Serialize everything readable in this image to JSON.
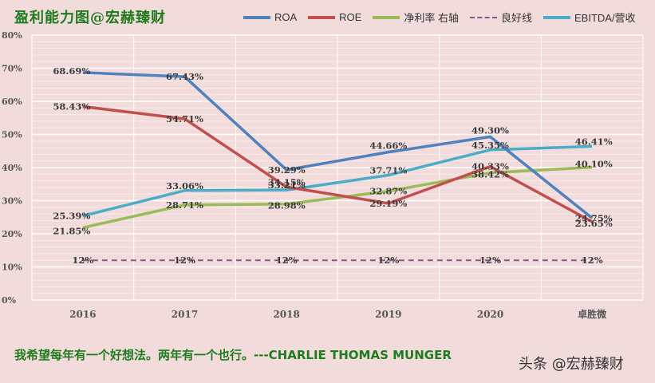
{
  "title": "盈利能力图@宏赫臻财",
  "footer_quote": "我希望每年有一个好想法。两年有一个也行。---CHARLIE THOMAS MUNGER",
  "watermark": "头条 @宏赫臻财",
  "colors": {
    "background": "#f2dcdb",
    "roa": "#4f81bd",
    "roe": "#c0504d",
    "net_margin": "#9bbb59",
    "good_line": "#7e5a8c",
    "ebitda": "#4bacc6",
    "title": "#1e7b1e"
  },
  "chart_data": {
    "type": "line",
    "categories": [
      "2016",
      "2017",
      "2018",
      "2019",
      "2020",
      "卓胜微"
    ],
    "ylim": [
      0,
      80
    ],
    "yticks": [
      "0%",
      "10%",
      "20%",
      "30%",
      "40%",
      "50%",
      "60%",
      "70%",
      "80%"
    ],
    "grid": true,
    "legend_position": "top-right",
    "series": [
      {
        "key": "roa",
        "name": "ROA",
        "values": [
          68.69,
          67.43,
          39.29,
          44.66,
          49.3,
          24.75
        ],
        "labels": [
          "68.69%",
          "67.43%",
          "39.29%",
          "44.66%",
          "49.30%",
          "24.75%"
        ]
      },
      {
        "key": "roe",
        "name": "ROE",
        "values": [
          58.43,
          54.71,
          34.15,
          29.19,
          40.33,
          23.65
        ],
        "labels": [
          "58.43%",
          "54.71%",
          "34.15%",
          "29.19%",
          "40.33%",
          "23.65%"
        ]
      },
      {
        "key": "net_margin",
        "name": "净利率 右轴",
        "values": [
          21.85,
          28.71,
          28.98,
          32.87,
          38.42,
          40.1
        ],
        "labels": [
          "21.85%",
          "28.71%",
          "28.98%",
          "32.87%",
          "38.42%",
          "40.10%"
        ]
      },
      {
        "key": "good_line",
        "name": "良好线",
        "values": [
          12,
          12,
          12,
          12,
          12,
          12
        ],
        "labels": [
          "12%",
          "12%",
          "12%",
          "12%",
          "12%",
          "12%"
        ],
        "dashed": true
      },
      {
        "key": "ebitda",
        "name": "EBITDA/营收",
        "values": [
          25.39,
          33.06,
          33.21,
          37.71,
          45.35,
          46.41
        ],
        "labels": [
          "25.39%",
          "33.06%",
          "33.21%",
          "37.71%",
          "45.35%",
          "46.41%"
        ]
      }
    ]
  }
}
